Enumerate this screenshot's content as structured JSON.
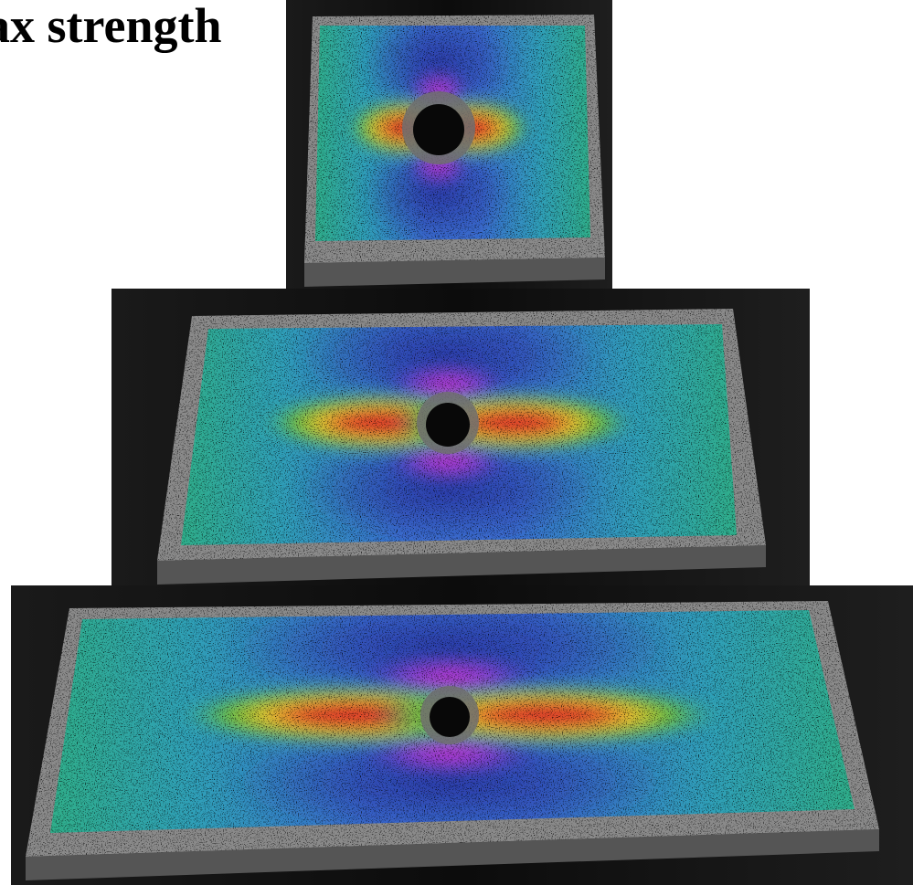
{
  "title": "ax strength"
}
